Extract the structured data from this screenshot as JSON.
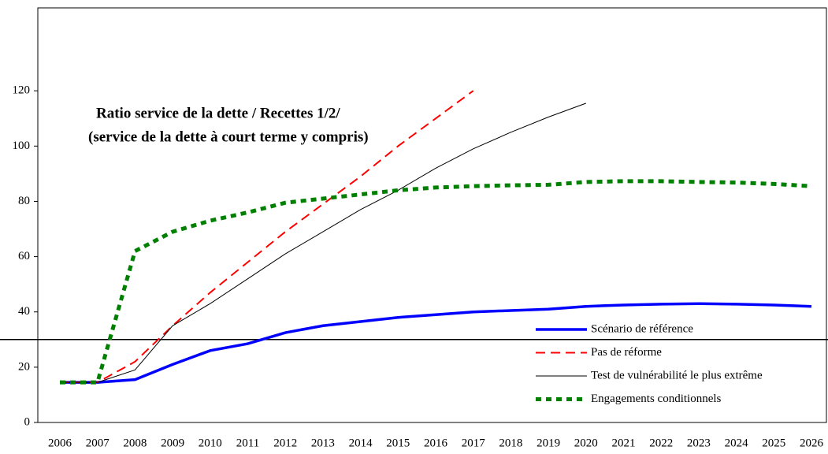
{
  "chart_data": {
    "type": "line",
    "title": "Ratio service de la dette / Recettes 1/2/",
    "subtitle": "(service de la dette à court terme y compris)",
    "categories": [
      "2006",
      "2007",
      "2008",
      "2009",
      "2010",
      "2011",
      "2012",
      "2013",
      "2014",
      "2015",
      "2016",
      "2017",
      "2018",
      "2019",
      "2020",
      "2021",
      "2022",
      "2023",
      "2024",
      "2025",
      "2026"
    ],
    "series": [
      {
        "name": "Scénario de référence",
        "color": "#0000ff",
        "style": "solid-thick",
        "values": [
          14.5,
          14.5,
          15.5,
          21,
          26,
          28.5,
          32.5,
          35,
          36.5,
          38,
          39,
          40,
          40.5,
          41,
          42,
          42.5,
          42.8,
          43,
          42.8,
          42.5,
          42
        ]
      },
      {
        "name": "Pas de réforme",
        "color": "#ff0000",
        "style": "dashed",
        "values": [
          14.5,
          14.5,
          22,
          35,
          47,
          58,
          69,
          79,
          89,
          100,
          110,
          120,
          null,
          null,
          null,
          null,
          null,
          null,
          null,
          null,
          null
        ]
      },
      {
        "name": "Test de vulnérabilité le plus extrême",
        "color": "#000000",
        "style": "solid-thin",
        "values": [
          14.5,
          14.5,
          19,
          35,
          43,
          52,
          61,
          69,
          77,
          84,
          92,
          99,
          105,
          110.5,
          115.5,
          null,
          null,
          null,
          null,
          null,
          null
        ]
      },
      {
        "name": "Engagements conditionnels",
        "color": "#008000",
        "style": "dotted",
        "values": [
          14.5,
          14.5,
          62,
          69,
          73,
          76,
          79.5,
          81,
          82.5,
          84,
          85,
          85.5,
          85.8,
          86,
          87,
          87.3,
          87.3,
          87,
          86.8,
          86.3,
          85.5
        ]
      }
    ],
    "threshold": 30,
    "ylim": [
      0,
      150
    ],
    "yticks": [
      0,
      20,
      40,
      60,
      80,
      100,
      120
    ]
  }
}
